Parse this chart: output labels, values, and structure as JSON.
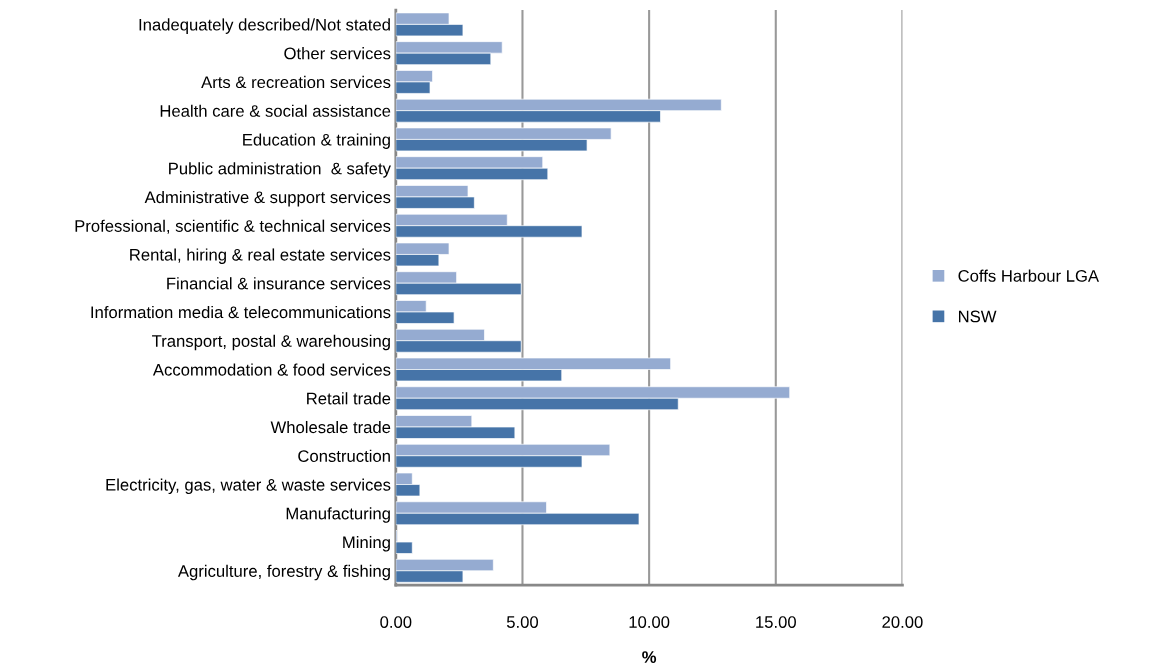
{
  "chart_data": {
    "type": "bar",
    "orientation": "horizontal",
    "xlabel": "%",
    "categories": [
      "Inadequately described/Not stated",
      "Other services",
      "Arts & recreation services",
      "Health care & social assistance",
      "Education & training",
      "Public administration  & safety",
      "Administrative & support services",
      "Professional, scientific & technical services",
      "Rental, hiring & real estate services",
      "Financial & insurance services",
      "Information media & telecommunications",
      "Transport, postal & warehousing",
      "Accommodation & food services",
      "Retail trade",
      "Wholesale trade",
      "Construction",
      "Electricity, gas, water & waste services",
      "Manufacturing",
      "Mining",
      "Agriculture, forestry & fishing"
    ],
    "series": [
      {
        "name": "Coffs Harbour LGA",
        "color": "#95abd1",
        "values": [
          2.1,
          4.2,
          1.45,
          12.85,
          8.5,
          5.8,
          2.85,
          4.4,
          2.1,
          2.4,
          1.2,
          3.5,
          10.85,
          15.55,
          3.0,
          8.45,
          0.65,
          5.95,
          0.05,
          3.85
        ]
      },
      {
        "name": "NSW",
        "color": "#4674a8",
        "values": [
          2.65,
          3.75,
          1.35,
          10.45,
          7.55,
          6.0,
          3.1,
          7.35,
          1.7,
          4.95,
          2.3,
          4.95,
          6.55,
          11.15,
          4.7,
          7.35,
          0.95,
          9.6,
          0.65,
          2.65
        ]
      }
    ],
    "xlim": [
      0,
      20
    ],
    "xticks": [
      {
        "value": 0,
        "label": "0.00"
      },
      {
        "value": 5,
        "label": "5.00"
      },
      {
        "value": 10,
        "label": "10.00"
      },
      {
        "value": 15,
        "label": "15.00"
      },
      {
        "value": 20,
        "label": "20.00"
      }
    ],
    "grid": "x",
    "legend": "right"
  }
}
